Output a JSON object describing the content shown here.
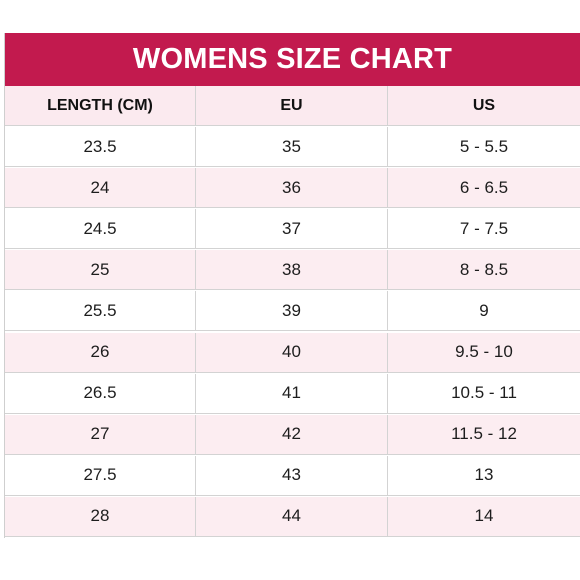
{
  "title": "WOMENS SIZE CHART",
  "colors": {
    "header_bg": "#c21a4e",
    "header_text": "#ffffff",
    "row_pink": "#fcedf1",
    "row_white": "#ffffff"
  },
  "columns": [
    "LENGTH (CM)",
    "EU",
    "US"
  ],
  "rows": [
    [
      "23.5",
      "35",
      "5 - 5.5"
    ],
    [
      "24",
      "36",
      "6 - 6.5"
    ],
    [
      "24.5",
      "37",
      "7 - 7.5"
    ],
    [
      "25",
      "38",
      "8 - 8.5"
    ],
    [
      "25.5",
      "39",
      "9"
    ],
    [
      "26",
      "40",
      "9.5 - 10"
    ],
    [
      "26.5",
      "41",
      "10.5 - 11"
    ],
    [
      "27",
      "42",
      "11.5 - 12"
    ],
    [
      "27.5",
      "43",
      "13"
    ],
    [
      "28",
      "44",
      "14"
    ]
  ]
}
